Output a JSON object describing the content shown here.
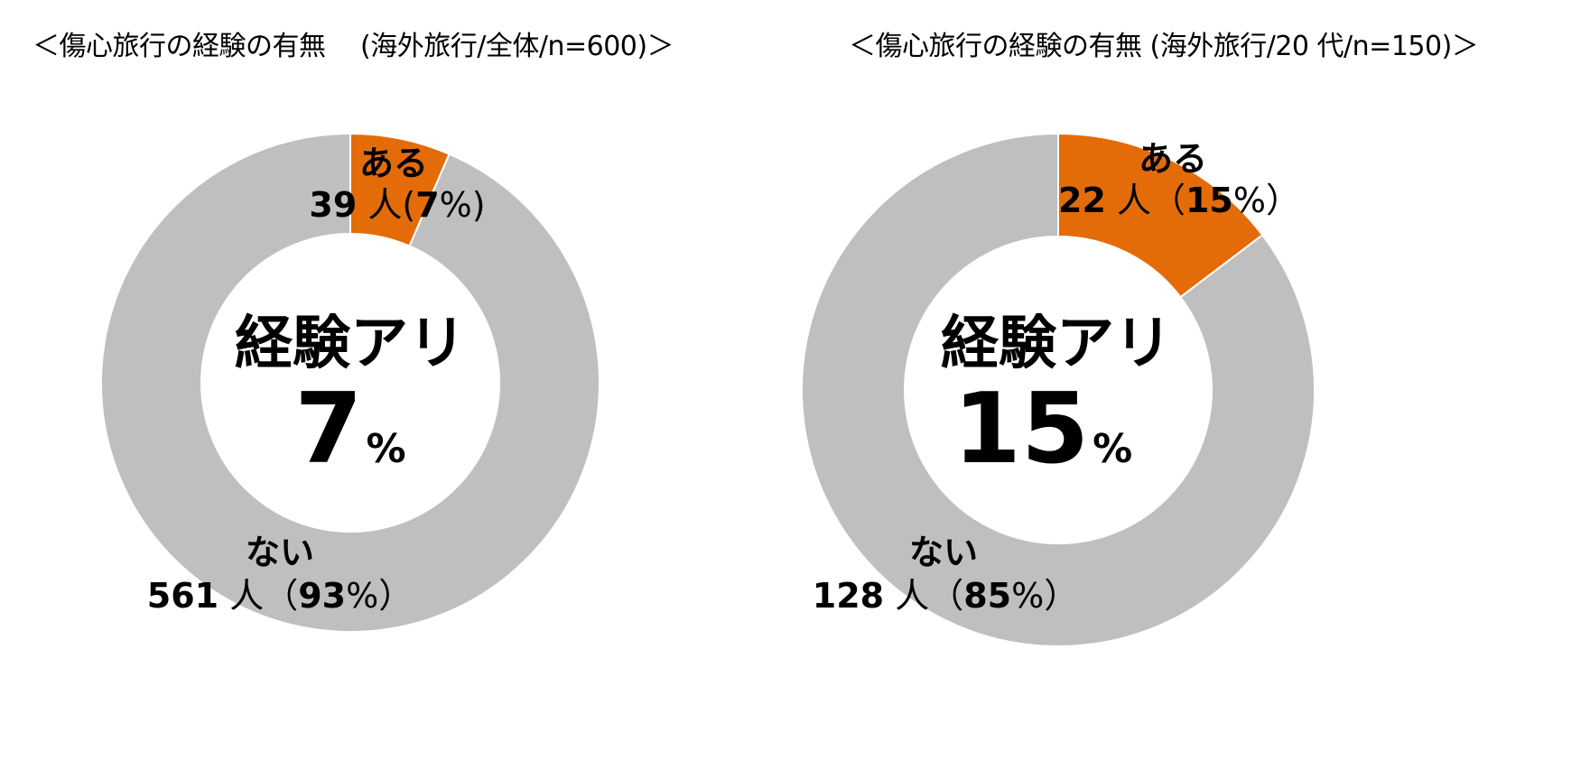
{
  "chart_data": [
    {
      "type": "pie",
      "title": "＜傷心旅行の経験の有無 　(海外旅行/全体/n=600)＞",
      "center_title": "経験アリ",
      "center_value": "7",
      "center_unit": "%",
      "slices": [
        {
          "label": "ある",
          "count": 39,
          "percent": 7,
          "detail_num": "39",
          "detail_rest": " 人(",
          "detail_pct": "7",
          "detail_end": "%)",
          "color": "#E36C09"
        },
        {
          "label": "ない",
          "count": 561,
          "percent": 93,
          "detail_num": "561",
          "detail_rest": " 人（",
          "detail_pct": "93",
          "detail_end": "%）",
          "color": "#BFBFBF"
        }
      ]
    },
    {
      "type": "pie",
      "title": "＜傷心旅行の経験の有無 (海外旅行/20 代/n=150)＞",
      "center_title": "経験アリ",
      "center_value": "15",
      "center_unit": "%",
      "slices": [
        {
          "label": "ある",
          "count": 22,
          "percent": 15,
          "detail_num": "22",
          "detail_rest": " 人（",
          "detail_pct": "15",
          "detail_end": "%）",
          "color": "#E36C09"
        },
        {
          "label": "ない",
          "count": 128,
          "percent": 85,
          "detail_num": "128",
          "detail_rest": " 人（",
          "detail_pct": "85",
          "detail_end": "%）",
          "color": "#BFBFBF"
        }
      ]
    }
  ]
}
